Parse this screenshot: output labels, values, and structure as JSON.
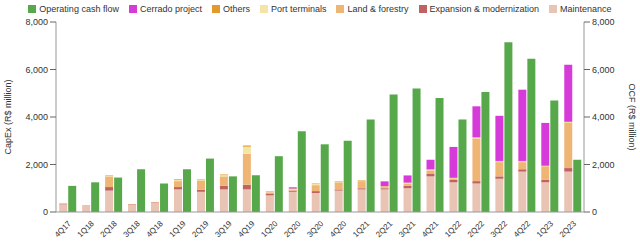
{
  "chart_data": {
    "type": "bar",
    "stacked": true,
    "legend": "top",
    "grid": false,
    "ylabel": "CapEx (R$ million)",
    "y2label": "OCF (R$ million)",
    "categories": [
      "4Q17",
      "1Q18",
      "2Q18",
      "3Q18",
      "4Q18",
      "1Q19",
      "2Q19",
      "3Q19",
      "4Q19",
      "1Q20",
      "2Q20",
      "3Q20",
      "4Q20",
      "1Q21",
      "2Q21",
      "3Q21",
      "4Q21",
      "1Q22",
      "2Q22",
      "3Q22",
      "4Q22",
      "1Q23",
      "2Q23"
    ],
    "series": [
      {
        "name": "Operating cash flow",
        "color": "#57a84b",
        "axis": "y2",
        "values": [
          1100,
          1250,
          1450,
          1800,
          1200,
          1800,
          2250,
          1500,
          1550,
          2350,
          3400,
          2850,
          3000,
          3900,
          4950,
          5200,
          4800,
          3900,
          5050,
          7150,
          6450,
          4700,
          2200
        ]
      },
      {
        "name": "Cerrado project",
        "color": "#d63ad8",
        "values": [
          0,
          0,
          0,
          0,
          0,
          0,
          0,
          0,
          0,
          0,
          50,
          0,
          0,
          0,
          200,
          300,
          400,
          1300,
          1300,
          1900,
          3000,
          1800,
          2400
        ]
      },
      {
        "name": "Others",
        "color": "#e39a2c",
        "values": [
          10,
          10,
          20,
          10,
          10,
          30,
          20,
          30,
          50,
          20,
          20,
          20,
          20,
          20,
          20,
          20,
          20,
          20,
          20,
          20,
          20,
          30,
          20
        ]
      },
      {
        "name": "Port terminals",
        "color": "#f6e4a6",
        "values": [
          0,
          0,
          30,
          0,
          0,
          50,
          30,
          50,
          300,
          30,
          20,
          50,
          30,
          20,
          20,
          20,
          30,
          20,
          30,
          30,
          30,
          20,
          30
        ]
      },
      {
        "name": "Land & forestry",
        "color": "#efb574",
        "values": [
          0,
          0,
          450,
          0,
          0,
          250,
          400,
          400,
          1300,
          50,
          50,
          250,
          300,
          300,
          50,
          100,
          150,
          50,
          1800,
          600,
          300,
          550,
          1900
        ]
      },
      {
        "name": "Expansion & modernization",
        "color": "#c06262",
        "values": [
          20,
          10,
          150,
          20,
          20,
          100,
          80,
          150,
          200,
          80,
          50,
          80,
          50,
          50,
          50,
          100,
          100,
          100,
          100,
          100,
          100,
          100,
          150
        ]
      },
      {
        "name": "Maintenance",
        "color": "#e9c3b3",
        "values": [
          330,
          260,
          900,
          300,
          380,
          950,
          850,
          950,
          950,
          700,
          850,
          800,
          900,
          950,
          950,
          1000,
          1500,
          1250,
          1200,
          1400,
          1700,
          1250,
          1700
        ]
      }
    ],
    "ylim": [
      0,
      8000
    ],
    "yticks": [
      0,
      {
        "value": 2000,
        "label": "2,000"
      },
      {
        "value": 4000,
        "label": "4,000"
      },
      {
        "value": 6000,
        "label": "6,000"
      },
      {
        "value": 8000,
        "label": "8,000"
      }
    ],
    "y2lim": [
      0,
      8000
    ],
    "y2ticks": [
      0,
      {
        "value": 2000,
        "label": "2,000"
      },
      {
        "value": 4000,
        "label": "4,000"
      },
      {
        "value": 6000,
        "label": "6,000"
      },
      {
        "value": 8000,
        "label": "8,000"
      }
    ]
  }
}
